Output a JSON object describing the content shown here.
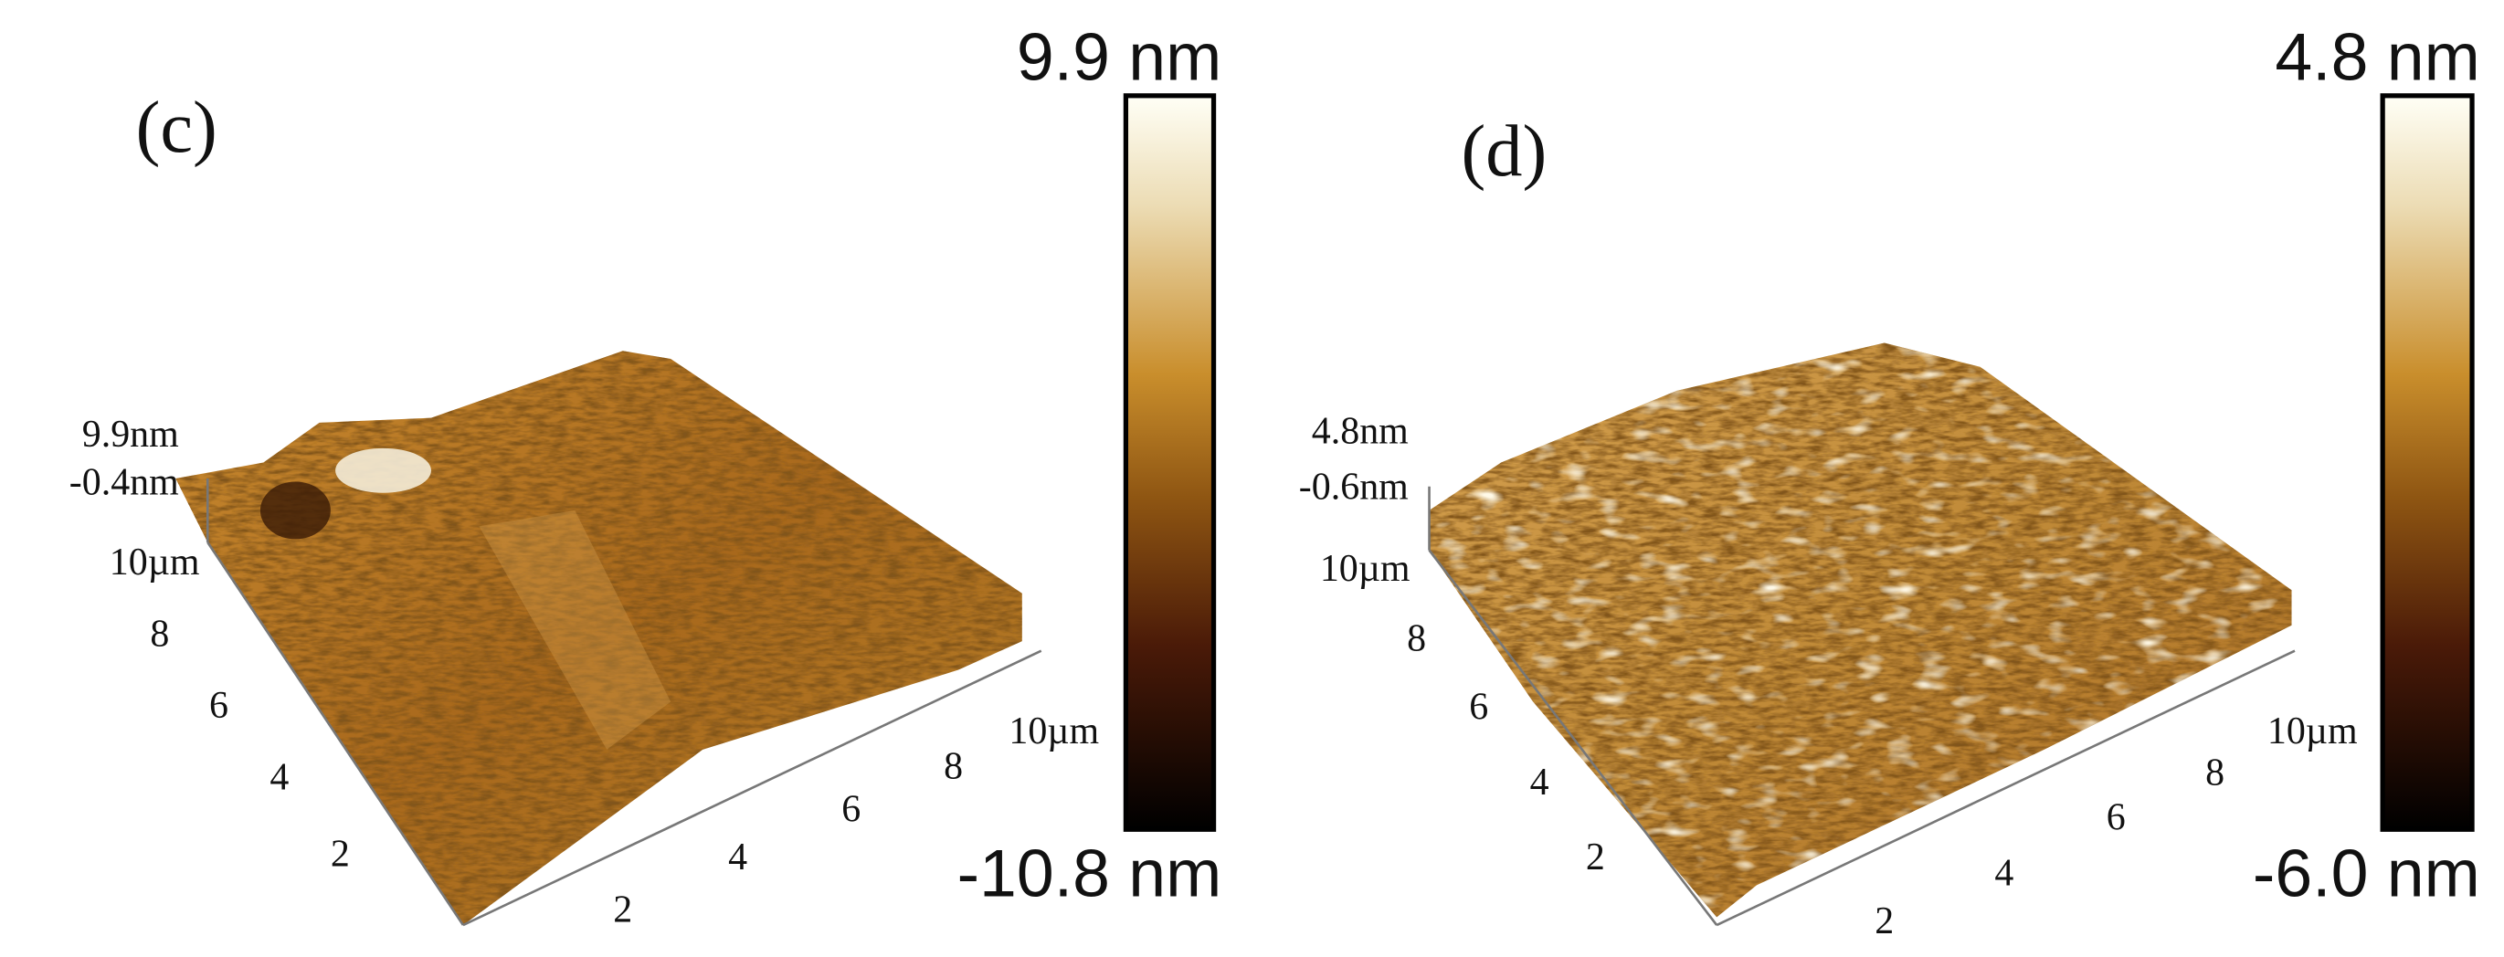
{
  "panels": [
    {
      "label": "(c)",
      "colorbar": {
        "max": "9.9 nm",
        "min": "-10.8 nm"
      },
      "z_axis": [
        "9.9nm",
        "-0.4nm"
      ],
      "y_axis": [
        "10µm",
        "8",
        "6",
        "4",
        "2"
      ],
      "x_axis": [
        "2",
        "4",
        "6",
        "8",
        "10µm"
      ]
    },
    {
      "label": "(d)",
      "colorbar": {
        "max": "4.8 nm",
        "min": "-6.0 nm"
      },
      "z_axis": [
        "4.8nm",
        "-0.6nm"
      ],
      "y_axis": [
        "10µm",
        "8",
        "6",
        "4",
        "2"
      ],
      "x_axis": [
        "2",
        "4",
        "6",
        "8",
        "10µm"
      ]
    }
  ]
}
